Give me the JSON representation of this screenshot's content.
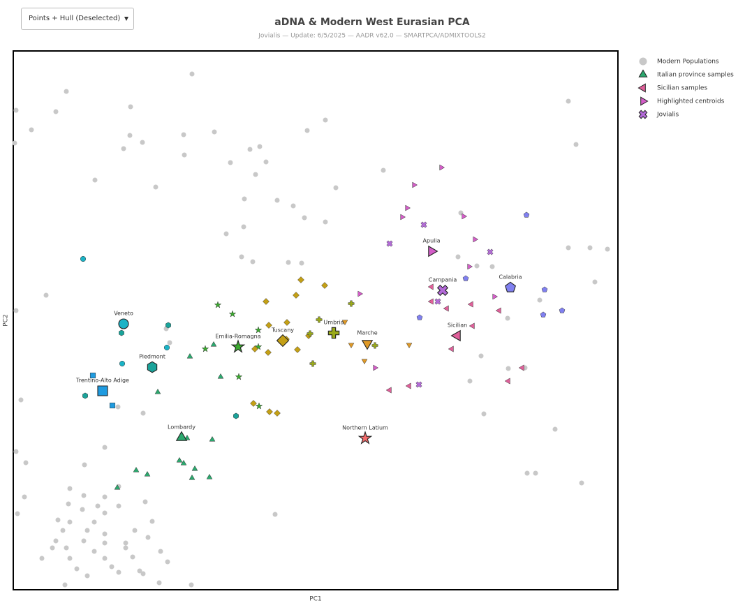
{
  "dropdown": {
    "label": "Points + Hull (Deselected)"
  },
  "chart_data": {
    "type": "scatter",
    "title": "aDNA & Modern West Eurasian PCA",
    "subtitle": "Jovialis — Update: 6/5/2025 — AADR v62.0 — SMARTPCA/ADMIXTOOLS2",
    "x_label": "PC1",
    "y_label": "PC2",
    "xlim": [
      0,
      866
    ],
    "ylim": [
      0,
      772
    ],
    "grid": false,
    "legend": "right",
    "series": [
      {
        "name": "Modern Populations",
        "color": "#c8c8c8",
        "marker": "circle",
        "x": [
          256,
          76,
          4,
          61,
          168,
          26,
          2,
          167,
          244,
          288,
          421,
          447,
          185,
          158,
          245,
          339,
          353,
          311,
          362,
          347,
          117,
          204,
          462,
          530,
          331,
          378,
          401,
          417,
          447,
          305,
          330,
          641,
          795,
          806,
          327,
          343,
          394,
          413,
          637,
          664,
          686,
          795,
          826,
          851,
          833,
          754,
          708,
          47,
          4,
          219,
          224,
          670,
          709,
          733,
          654,
          674,
          776,
          736,
          748,
          814,
          11,
          150,
          186,
          4,
          18,
          131,
          102,
          16,
          6,
          375,
          151,
          81,
          101,
          131,
          189,
          79,
          121,
          151,
          99,
          131,
          199,
          64,
          81,
          116,
          71,
          106,
          131,
          174,
          61,
          101,
          131,
          161,
          193,
          56,
          76,
          116,
          161,
          211,
          41,
          81,
          131,
          171,
          221,
          91,
          141,
          181,
          106,
          151,
          186,
          74,
          209,
          255
        ],
        "y": [
          739,
          714,
          687,
          685,
          692,
          659,
          640,
          651,
          652,
          656,
          658,
          673,
          641,
          632,
          623,
          631,
          635,
          612,
          613,
          595,
          587,
          577,
          576,
          601,
          560,
          558,
          550,
          533,
          527,
          510,
          520,
          540,
          700,
          638,
          477,
          470,
          469,
          468,
          477,
          464,
          463,
          490,
          490,
          488,
          441,
          415,
          389,
          422,
          400,
          374,
          354,
          335,
          317,
          318,
          299,
          252,
          230,
          167,
          167,
          153,
          272,
          262,
          253,
          198,
          182,
          204,
          179,
          133,
          109,
          108,
          148,
          145,
          135,
          133,
          126,
          123,
          120,
          120,
          115,
          110,
          98,
          100,
          97,
          97,
          85,
          85,
          80,
          85,
          70,
          70,
          67,
          67,
          75,
          60,
          60,
          55,
          60,
          55,
          45,
          45,
          45,
          47,
          40,
          30,
          33,
          27,
          20,
          25,
          23,
          7,
          10,
          7
        ]
      },
      {
        "name": "Italian province samples",
        "color": "#2ca86e",
        "marker": "triangle-up",
        "groups": [
          {
            "color": "#1ab3c6",
            "marker": "circle",
            "x": [
              100,
              156,
              220
            ],
            "y": [
              474,
              324,
              347
            ]
          },
          {
            "color": "#1aa39a",
            "marker": "hexagon",
            "x": [
              155,
              222,
              103,
              319
            ],
            "y": [
              368,
              379,
              278,
              249
            ]
          },
          {
            "color": "#1f9be0",
            "marker": "square",
            "x": [
              114,
              142
            ],
            "y": [
              307,
              264
            ]
          },
          {
            "color": "#2ca86e",
            "marker": "triangle-up",
            "x": [
              253,
              287,
              297,
              207,
              249,
              285,
              176,
              192,
              238,
              244,
              260,
              256,
              281,
              149
            ],
            "y": [
              334,
              351,
              305,
              283,
              217,
              215,
              171,
              165,
              185,
              181,
              173,
              160,
              161,
              146
            ]
          },
          {
            "color": "#3bab2f",
            "marker": "star",
            "x": [
              293,
              314,
              351,
              275,
              323,
              351,
              352
            ],
            "y": [
              408,
              395,
              372,
              345,
              305,
              348,
              263
            ]
          },
          {
            "color": "#c4a016",
            "marker": "diamond",
            "x": [
              412,
              446,
              362,
              405,
              366,
              392,
              346,
              365,
              407,
              423,
              344,
              367,
              378,
              391
            ],
            "y": [
              444,
              436,
              413,
              422,
              379,
              383,
              345,
              340,
              344,
              364,
              267,
              255,
              253,
              359
            ]
          },
          {
            "color": "#9aaa1a",
            "marker": "cross",
            "x": [
              484,
              438,
              425,
              429,
              518
            ],
            "y": [
              410,
              387,
              367,
              324,
              350
            ]
          },
          {
            "color": "#e09a27",
            "marker": "triangle-down",
            "x": [
              475,
              484,
              567,
              503
            ],
            "y": [
              384,
              351,
              351,
              328
            ]
          },
          {
            "color": "#d45dc8",
            "marker": "triangle-right",
            "x": [
              613,
              574,
              564,
              557,
              645,
              661,
              653,
              689,
              496,
              518
            ],
            "y": [
              605,
              580,
              547,
              534,
              535,
              502,
              463,
              420,
              424,
              318
            ]
          },
          {
            "color": "#8080f0",
            "marker": "pentagon",
            "x": [
              735,
              648,
              761,
              786,
              759,
              582
            ],
            "y": [
              537,
              446,
              430,
              400,
              394,
              390
            ]
          }
        ]
      },
      {
        "name": "Sicilian samples",
        "color": "#e0609a",
        "marker": "triangle-left",
        "x": [
          599,
          599,
          621,
          656,
          696,
          658,
          628,
          729,
          709,
          539,
          567
        ],
        "y": [
          434,
          413,
          403,
          409,
          400,
          378,
          345,
          318,
          299,
          286,
          292
        ]
      },
      {
        "name": "Highlighted centroids",
        "color": "#d45dc8",
        "marker": "triangle-right",
        "points": [
          {
            "label": "Veneto",
            "color": "#1ab3c6",
            "marker": "circle",
            "x": 158,
            "y": 381
          },
          {
            "label": "Piedmont",
            "color": "#1aa39a",
            "marker": "hexagon",
            "x": 199,
            "y": 319
          },
          {
            "label": "Trentino-Alto Adige",
            "color": "#1f9be0",
            "marker": "square",
            "x": 128,
            "y": 285
          },
          {
            "label": "Lombardy",
            "color": "#2ca86e",
            "marker": "triangle-up",
            "x": 241,
            "y": 218
          },
          {
            "label": "Emilia-Romagna",
            "color": "#3bab2f",
            "marker": "star",
            "x": 322,
            "y": 348
          },
          {
            "label": "Tuscany",
            "color": "#c4a016",
            "marker": "diamond",
            "x": 386,
            "y": 357
          },
          {
            "label": "Umbria",
            "color": "#9aaa1a",
            "marker": "cross",
            "x": 459,
            "y": 368
          },
          {
            "label": "Marche",
            "color": "#e09a27",
            "marker": "triangle-down",
            "x": 507,
            "y": 353
          },
          {
            "label": "Northern Latium",
            "color": "#f26b6b",
            "marker": "star",
            "x": 504,
            "y": 217
          },
          {
            "label": "Apulia",
            "color": "#d45dc8",
            "marker": "triangle-right",
            "x": 599,
            "y": 485
          },
          {
            "label": "Campania",
            "color": "#b36ad8",
            "marker": "x",
            "x": 615,
            "y": 429
          },
          {
            "label": "Calabria",
            "color": "#8080f0",
            "marker": "pentagon",
            "x": 712,
            "y": 433
          },
          {
            "label": "Sicilian",
            "color": "#e0609a",
            "marker": "triangle-left",
            "x": 636,
            "y": 364
          }
        ]
      },
      {
        "name": "Jovialis",
        "color": "#b36ad8",
        "marker": "x",
        "x": [
          588,
          539,
          683,
          608,
          581
        ],
        "y": [
          523,
          496,
          484,
          413,
          294
        ]
      }
    ]
  }
}
